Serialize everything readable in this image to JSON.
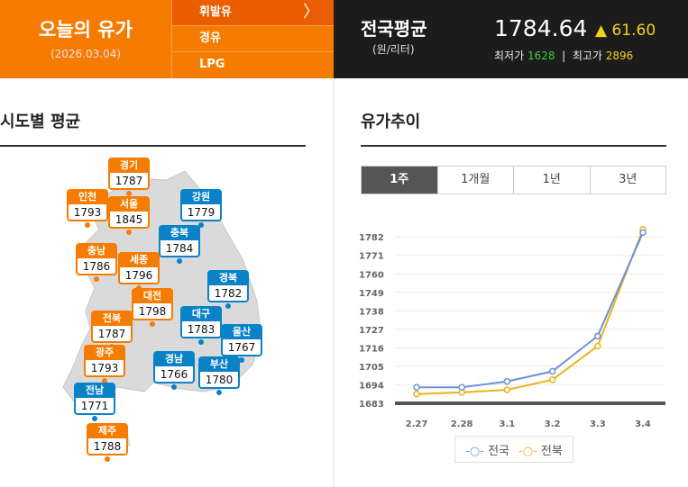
{
  "header": {
    "title": "오늘의 유가",
    "date": "(2026.03.04)",
    "fuels": [
      {
        "label": "휘발유",
        "active": true
      },
      {
        "label": "경유"
      },
      {
        "label": "LPG"
      }
    ],
    "national": {
      "title": "전국평균",
      "unit": "(원/리터)",
      "value": "1784.64",
      "change": "▲ 61.60",
      "min_label": "최저가",
      "min": "1628",
      "sep": "|",
      "max_label": "최고가",
      "max": "2896"
    }
  },
  "regional": {
    "title": "시도별 평균",
    "regions": [
      {
        "name": "경기",
        "value": "1787",
        "color": "orange"
      },
      {
        "name": "인천",
        "value": "1793",
        "color": "orange"
      },
      {
        "name": "서울",
        "value": "1845",
        "color": "orange"
      },
      {
        "name": "강원",
        "value": "1779",
        "color": "blue"
      },
      {
        "name": "충북",
        "value": "1784",
        "color": "blue"
      },
      {
        "name": "충남",
        "value": "1786",
        "color": "orange"
      },
      {
        "name": "세종",
        "value": "1796",
        "color": "orange"
      },
      {
        "name": "경북",
        "value": "1782",
        "color": "blue"
      },
      {
        "name": "대전",
        "value": "1798",
        "color": "orange"
      },
      {
        "name": "전북",
        "value": "1787",
        "color": "orange"
      },
      {
        "name": "대구",
        "value": "1783",
        "color": "blue"
      },
      {
        "name": "울산",
        "value": "1767",
        "color": "blue"
      },
      {
        "name": "광주",
        "value": "1793",
        "color": "orange"
      },
      {
        "name": "경남",
        "value": "1766",
        "color": "blue"
      },
      {
        "name": "부산",
        "value": "1780",
        "color": "blue"
      },
      {
        "name": "전남",
        "value": "1771",
        "color": "blue"
      },
      {
        "name": "제주",
        "value": "1788",
        "color": "orange"
      }
    ]
  },
  "colors": {
    "orange": "#f57c00",
    "blue": "#0a82c8",
    "series_national": "#6b93d6",
    "series_jeonbuk": "#e8b416"
  },
  "trend": {
    "title": "유가추이",
    "tabs": [
      {
        "label": "1주",
        "active": true
      },
      {
        "label": "1개월"
      },
      {
        "label": "1년"
      },
      {
        "label": "3년"
      }
    ]
  },
  "chart_data": {
    "type": "line",
    "x": [
      "2.27",
      "2.28",
      "3.1",
      "3.2",
      "3.3",
      "3.4"
    ],
    "yticks": [
      "1683",
      "1694",
      "1705",
      "1716",
      "1727",
      "1738",
      "1749",
      "1760",
      "1771",
      "1782"
    ],
    "ylim": [
      1683,
      1788
    ],
    "grid": true,
    "legend": "bottom",
    "series": [
      {
        "name": "전국",
        "values": [
          1692.5,
          1692.5,
          1696,
          1702,
          1723,
          1784.6
        ]
      },
      {
        "name": "전북",
        "values": [
          1688.5,
          1689.5,
          1691,
          1697,
          1717,
          1786.5
        ]
      }
    ]
  }
}
